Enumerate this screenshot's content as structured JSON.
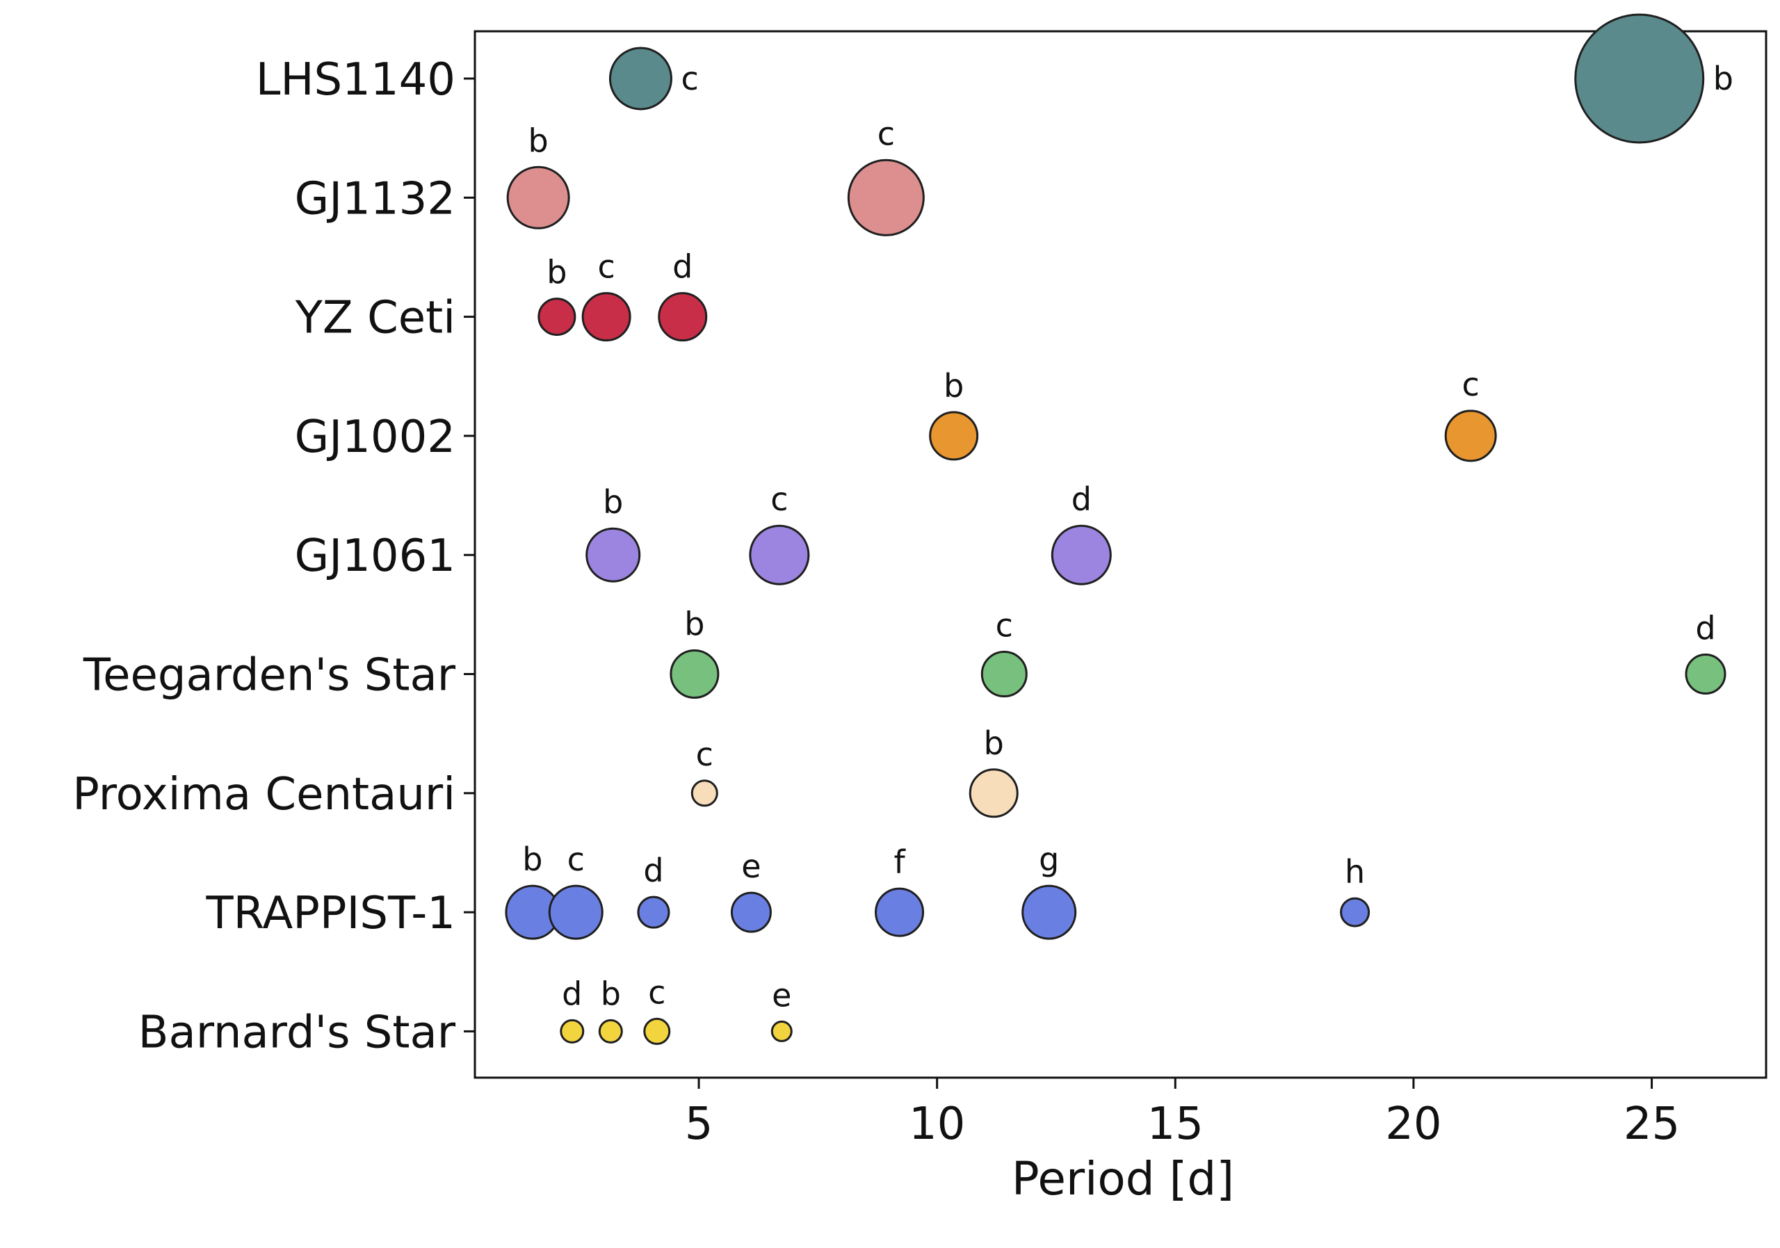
{
  "chart_data": {
    "type": "scatter",
    "title": "",
    "xlabel": "Period [d]",
    "ylabel": "",
    "xlim": [
      0.3,
      27.4
    ],
    "x_ticks": [
      5,
      10,
      15,
      20,
      25
    ],
    "grid": false,
    "legend": "none",
    "marker_edge_color": "#1f1f1f",
    "stars": [
      {
        "name": "LHS1140",
        "color": "#5a8a8c",
        "planets": [
          {
            "label": "c",
            "period": 3.78,
            "size": 2.2,
            "label_pos": "right"
          },
          {
            "label": "b",
            "period": 24.74,
            "size": 4.6,
            "label_pos": "right"
          }
        ]
      },
      {
        "name": "GJ1132",
        "color": "#dd8f8f",
        "planets": [
          {
            "label": "b",
            "period": 1.63,
            "size": 2.2,
            "label_pos": "top"
          },
          {
            "label": "c",
            "period": 8.93,
            "size": 2.7,
            "label_pos": "top"
          }
        ]
      },
      {
        "name": "YZ Ceti",
        "color": "#c82e48",
        "planets": [
          {
            "label": "b",
            "period": 2.02,
            "size": 1.3,
            "label_pos": "top"
          },
          {
            "label": "c",
            "period": 3.06,
            "size": 1.7,
            "label_pos": "top"
          },
          {
            "label": "d",
            "period": 4.66,
            "size": 1.7,
            "label_pos": "top"
          }
        ]
      },
      {
        "name": "GJ1002",
        "color": "#e8962f",
        "planets": [
          {
            "label": "b",
            "period": 10.35,
            "size": 1.7,
            "label_pos": "top"
          },
          {
            "label": "c",
            "period": 21.2,
            "size": 1.8,
            "label_pos": "top"
          }
        ]
      },
      {
        "name": "GJ1061",
        "color": "#9b85e0",
        "planets": [
          {
            "label": "b",
            "period": 3.2,
            "size": 1.9,
            "label_pos": "top"
          },
          {
            "label": "c",
            "period": 6.69,
            "size": 2.1,
            "label_pos": "top"
          },
          {
            "label": "d",
            "period": 13.03,
            "size": 2.1,
            "label_pos": "top"
          }
        ]
      },
      {
        "name": "Teegarden's Star",
        "color": "#78c07e",
        "planets": [
          {
            "label": "b",
            "period": 4.91,
            "size": 1.7,
            "label_pos": "top"
          },
          {
            "label": "c",
            "period": 11.41,
            "size": 1.6,
            "label_pos": "top"
          },
          {
            "label": "d",
            "period": 26.13,
            "size": 1.4,
            "label_pos": "top"
          }
        ]
      },
      {
        "name": "Proxima Centauri",
        "color": "#f8ddba",
        "planets": [
          {
            "label": "c",
            "period": 5.12,
            "size": 0.9,
            "label_pos": "top"
          },
          {
            "label": "b",
            "period": 11.19,
            "size": 1.7,
            "label_pos": "top"
          }
        ]
      },
      {
        "name": "TRAPPIST-1",
        "color": "#6a7fe2",
        "planets": [
          {
            "label": "b",
            "period": 1.51,
            "size": 1.9,
            "label_pos": "top"
          },
          {
            "label": "c",
            "period": 2.42,
            "size": 1.9,
            "label_pos": "top"
          },
          {
            "label": "d",
            "period": 4.05,
            "size": 1.1,
            "label_pos": "top"
          },
          {
            "label": "e",
            "period": 6.1,
            "size": 1.4,
            "label_pos": "top"
          },
          {
            "label": "f",
            "period": 9.21,
            "size": 1.7,
            "label_pos": "top"
          },
          {
            "label": "g",
            "period": 12.35,
            "size": 1.9,
            "label_pos": "top"
          },
          {
            "label": "h",
            "period": 18.77,
            "size": 1.0,
            "label_pos": "top"
          }
        ]
      },
      {
        "name": "Barnard's Star",
        "color": "#f2d53e",
        "planets": [
          {
            "label": "d",
            "period": 2.34,
            "size": 0.8,
            "label_pos": "top"
          },
          {
            "label": "b",
            "period": 3.15,
            "size": 0.8,
            "label_pos": "top"
          },
          {
            "label": "c",
            "period": 4.12,
            "size": 0.9,
            "label_pos": "top"
          },
          {
            "label": "e",
            "period": 6.74,
            "size": 0.7,
            "label_pos": "top"
          }
        ]
      }
    ]
  }
}
